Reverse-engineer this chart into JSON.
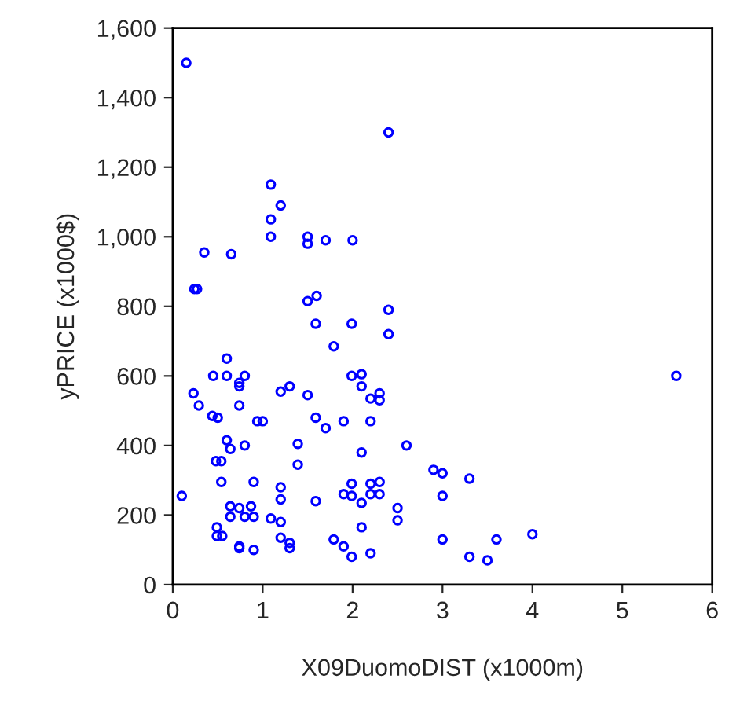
{
  "chart_data": {
    "type": "scatter",
    "xlabel": "X09DuomoDIST (x1000m)",
    "ylabel": "yPRICE (x1000$)",
    "xlim": [
      0,
      6
    ],
    "xticks": [
      0,
      1,
      2,
      3,
      4,
      5,
      6
    ],
    "ylim": [
      0,
      1600
    ],
    "yticks": [
      0,
      200,
      400,
      600,
      800,
      {
        "value": 1000,
        "label": "1,000"
      },
      {
        "value": 1200,
        "label": "1,200"
      },
      {
        "value": 1400,
        "label": "1,400"
      },
      {
        "value": 1600,
        "label": "1,600"
      }
    ],
    "grid": false,
    "marker": "circle",
    "series": [
      {
        "color": "#0000ff",
        "x": [
          0.15,
          2.4,
          1.09,
          1.2,
          1.09,
          1.09,
          1.5,
          1.5,
          1.7,
          2.0,
          0.35,
          0.65,
          0.24,
          0.27,
          1.5,
          1.6,
          2.4,
          1.59,
          1.99,
          2.4,
          1.79,
          0.6,
          0.45,
          0.6,
          0.8,
          0.74,
          0.74,
          0.23,
          0.29,
          0.74,
          1.2,
          1.3,
          1.5,
          1.99,
          2.1,
          2.1,
          2.2,
          2.3,
          2.3,
          0.44,
          0.5,
          0.94,
          1.0,
          1.59,
          1.7,
          1.9,
          2.2,
          0.6,
          0.64,
          0.8,
          1.39,
          2.6,
          2.1,
          0.48,
          0.54,
          1.39,
          2.9,
          0.54,
          0.9,
          1.2,
          1.99,
          2.2,
          2.3,
          0.1,
          1.9,
          1.99,
          2.2,
          2.3,
          1.2,
          1.59,
          0.64,
          0.74,
          0.87,
          2.1,
          2.5,
          0.64,
          0.8,
          0.9,
          1.09,
          1.2,
          2.5,
          0.49,
          2.1,
          0.49,
          0.55,
          1.2,
          1.79,
          1.3,
          1.3,
          0.74,
          0.74,
          1.9,
          0.9,
          2.2,
          1.99,
          3.0,
          3.3,
          3.0,
          3.0,
          3.6,
          4.0,
          3.3,
          3.5,
          5.6
        ],
        "values": [
          1500,
          1300,
          1150,
          1090,
          1050,
          1000,
          1000,
          980,
          990,
          990,
          955,
          950,
          850,
          850,
          815,
          830,
          790,
          750,
          750,
          720,
          685,
          650,
          600,
          600,
          600,
          580,
          570,
          550,
          515,
          515,
          555,
          570,
          545,
          600,
          605,
          570,
          535,
          550,
          530,
          485,
          480,
          470,
          470,
          480,
          450,
          470,
          470,
          415,
          390,
          400,
          405,
          400,
          380,
          355,
          355,
          345,
          330,
          295,
          295,
          280,
          290,
          290,
          295,
          255,
          260,
          255,
          260,
          260,
          245,
          240,
          225,
          220,
          225,
          235,
          220,
          195,
          195,
          195,
          190,
          180,
          185,
          165,
          165,
          140,
          140,
          135,
          130,
          120,
          105,
          110,
          105,
          110,
          100,
          90,
          80,
          320,
          305,
          255,
          130,
          130,
          145,
          80,
          70,
          600
        ]
      }
    ]
  }
}
